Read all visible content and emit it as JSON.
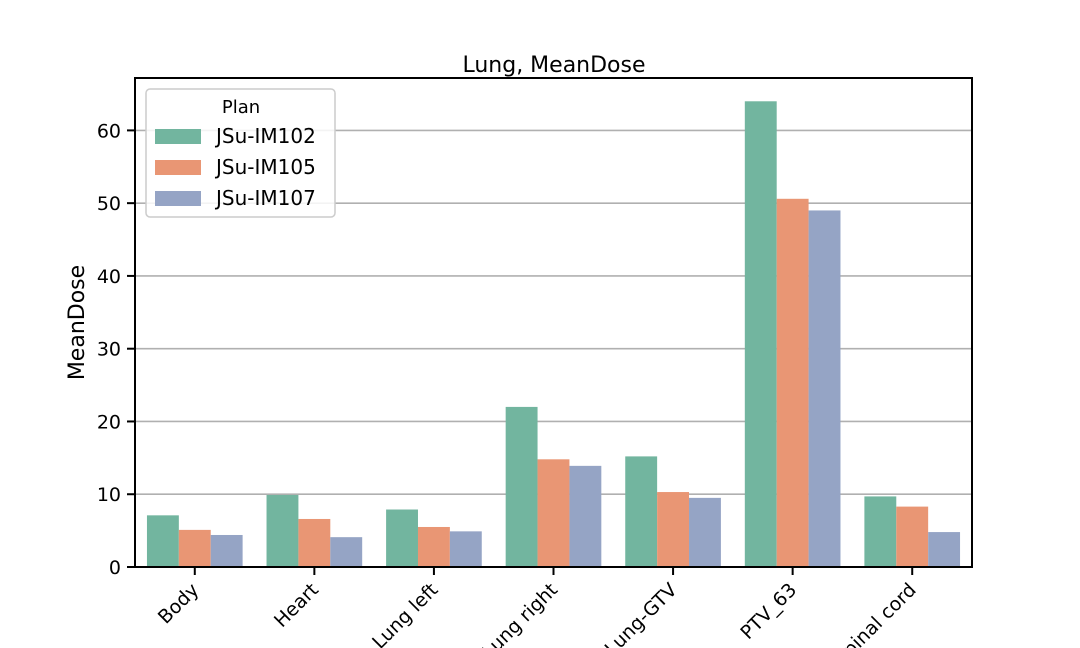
{
  "chart_data": {
    "type": "bar",
    "title": "Lung, MeanDose",
    "xlabel": "",
    "ylabel": "MeanDose",
    "ylim": [
      0,
      67.2
    ],
    "yticks": [
      0,
      10,
      20,
      30,
      40,
      50,
      60
    ],
    "grid": "y",
    "categories": [
      "Body",
      "Heart",
      "Lung left",
      "Lung right",
      "Lung-GTV",
      "PTV_63",
      "Spinal cord"
    ],
    "legend": {
      "title": "Plan",
      "position": "upper-left"
    },
    "series": [
      {
        "name": "JSu-IM102",
        "color": "#72b59f",
        "values": [
          7.1,
          9.9,
          7.9,
          22.0,
          15.2,
          64.0,
          9.7
        ]
      },
      {
        "name": "JSu-IM105",
        "color": "#e99674",
        "values": [
          5.1,
          6.6,
          5.5,
          14.8,
          10.3,
          50.6,
          8.3
        ]
      },
      {
        "name": "JSu-IM107",
        "color": "#95a4c5",
        "values": [
          4.4,
          4.1,
          4.9,
          13.9,
          9.5,
          49.0,
          4.8
        ]
      }
    ]
  }
}
